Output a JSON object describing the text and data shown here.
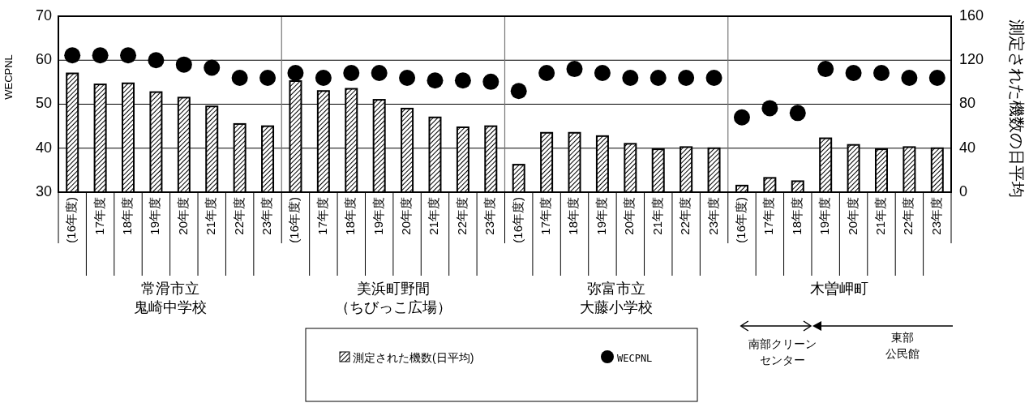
{
  "chart_data": {
    "type": "bar",
    "categories": [
      "(16年度)",
      "17年度",
      "18年度",
      "19年度",
      "20年度",
      "21年度",
      "22年度",
      "23年度",
      "(16年度)",
      "17年度",
      "18年度",
      "19年度",
      "20年度",
      "21年度",
      "22年度",
      "23年度",
      "(16年度)",
      "17年度",
      "18年度",
      "19年度",
      "20年度",
      "21年度",
      "22年度",
      "23年度",
      "(16年度)",
      "17年度",
      "18年度",
      "19年度",
      "20年度",
      "21年度",
      "22年度",
      "23年度"
    ],
    "series": [
      {
        "name": "測定された機数(日平均)",
        "axis": "y2",
        "color": "#000000",
        "values": [
          108,
          98,
          99,
          91,
          86,
          78,
          62,
          60,
          101,
          92,
          94,
          84,
          76,
          68,
          59,
          60,
          25,
          54,
          54,
          51,
          44,
          39,
          41,
          40,
          6,
          13,
          10,
          49,
          43,
          39,
          41,
          40
        ]
      },
      {
        "name": "WECPNL",
        "type": "scatter",
        "marker": "circle",
        "color": "#000000",
        "values": [
          61.1,
          61.1,
          61.1,
          60.0,
          59.0,
          58.3,
          56.0,
          56.0,
          57.1,
          56.0,
          57.1,
          57.1,
          56.0,
          55.4,
          55.4,
          55.1,
          53.0,
          57.1,
          58.0,
          57.1,
          56.0,
          56.0,
          56.0,
          56.0,
          47.0,
          49.1,
          48.0,
          58.0,
          57.1,
          57.1,
          56.0,
          56.0
        ]
      }
    ],
    "ylabel": "WECPNL",
    "y2label": "測定された機数の日平均",
    "ylim": [
      30,
      70
    ],
    "yticks": [
      30,
      40,
      50,
      60,
      70
    ],
    "y2lim": [
      0,
      160
    ],
    "y2ticks": [
      0,
      40,
      80,
      120,
      160
    ],
    "grid": "y",
    "legend": "bottom",
    "annotations": [
      "常滑市立",
      "鬼崎中学校",
      "美浜町野間",
      "（ちびっこ広場）",
      "弥富市立",
      "大藤小学校",
      "木曽岬町",
      "南部クリーン",
      "センター",
      "東部",
      "公民館"
    ]
  }
}
